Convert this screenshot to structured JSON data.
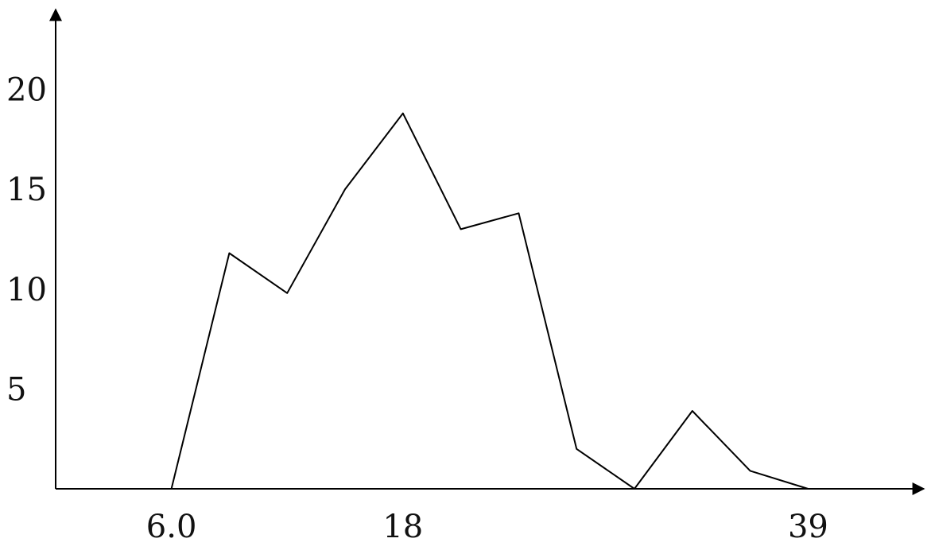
{
  "chart_data": {
    "type": "line",
    "title": "",
    "xlabel": "",
    "ylabel": "",
    "xlim": [
      0,
      45
    ],
    "ylim": [
      0,
      24
    ],
    "x_ticks": [
      {
        "value": 6,
        "label": "6.0"
      },
      {
        "value": 18,
        "label": "18"
      },
      {
        "value": 39,
        "label": "39"
      }
    ],
    "y_ticks": [
      {
        "value": 5,
        "label": "5"
      },
      {
        "value": 10,
        "label": "10"
      },
      {
        "value": 15,
        "label": "15"
      },
      {
        "value": 20,
        "label": "20"
      }
    ],
    "grid": false,
    "legend": "none",
    "color": "#000000",
    "series": [
      {
        "x": [
          6,
          9,
          12,
          15,
          18,
          21,
          24,
          27,
          30,
          33,
          36,
          39
        ],
        "y": [
          0,
          11.8,
          9.8,
          15,
          18.8,
          13.0,
          13.8,
          2.0,
          0,
          3.9,
          0.9,
          0
        ]
      }
    ]
  }
}
